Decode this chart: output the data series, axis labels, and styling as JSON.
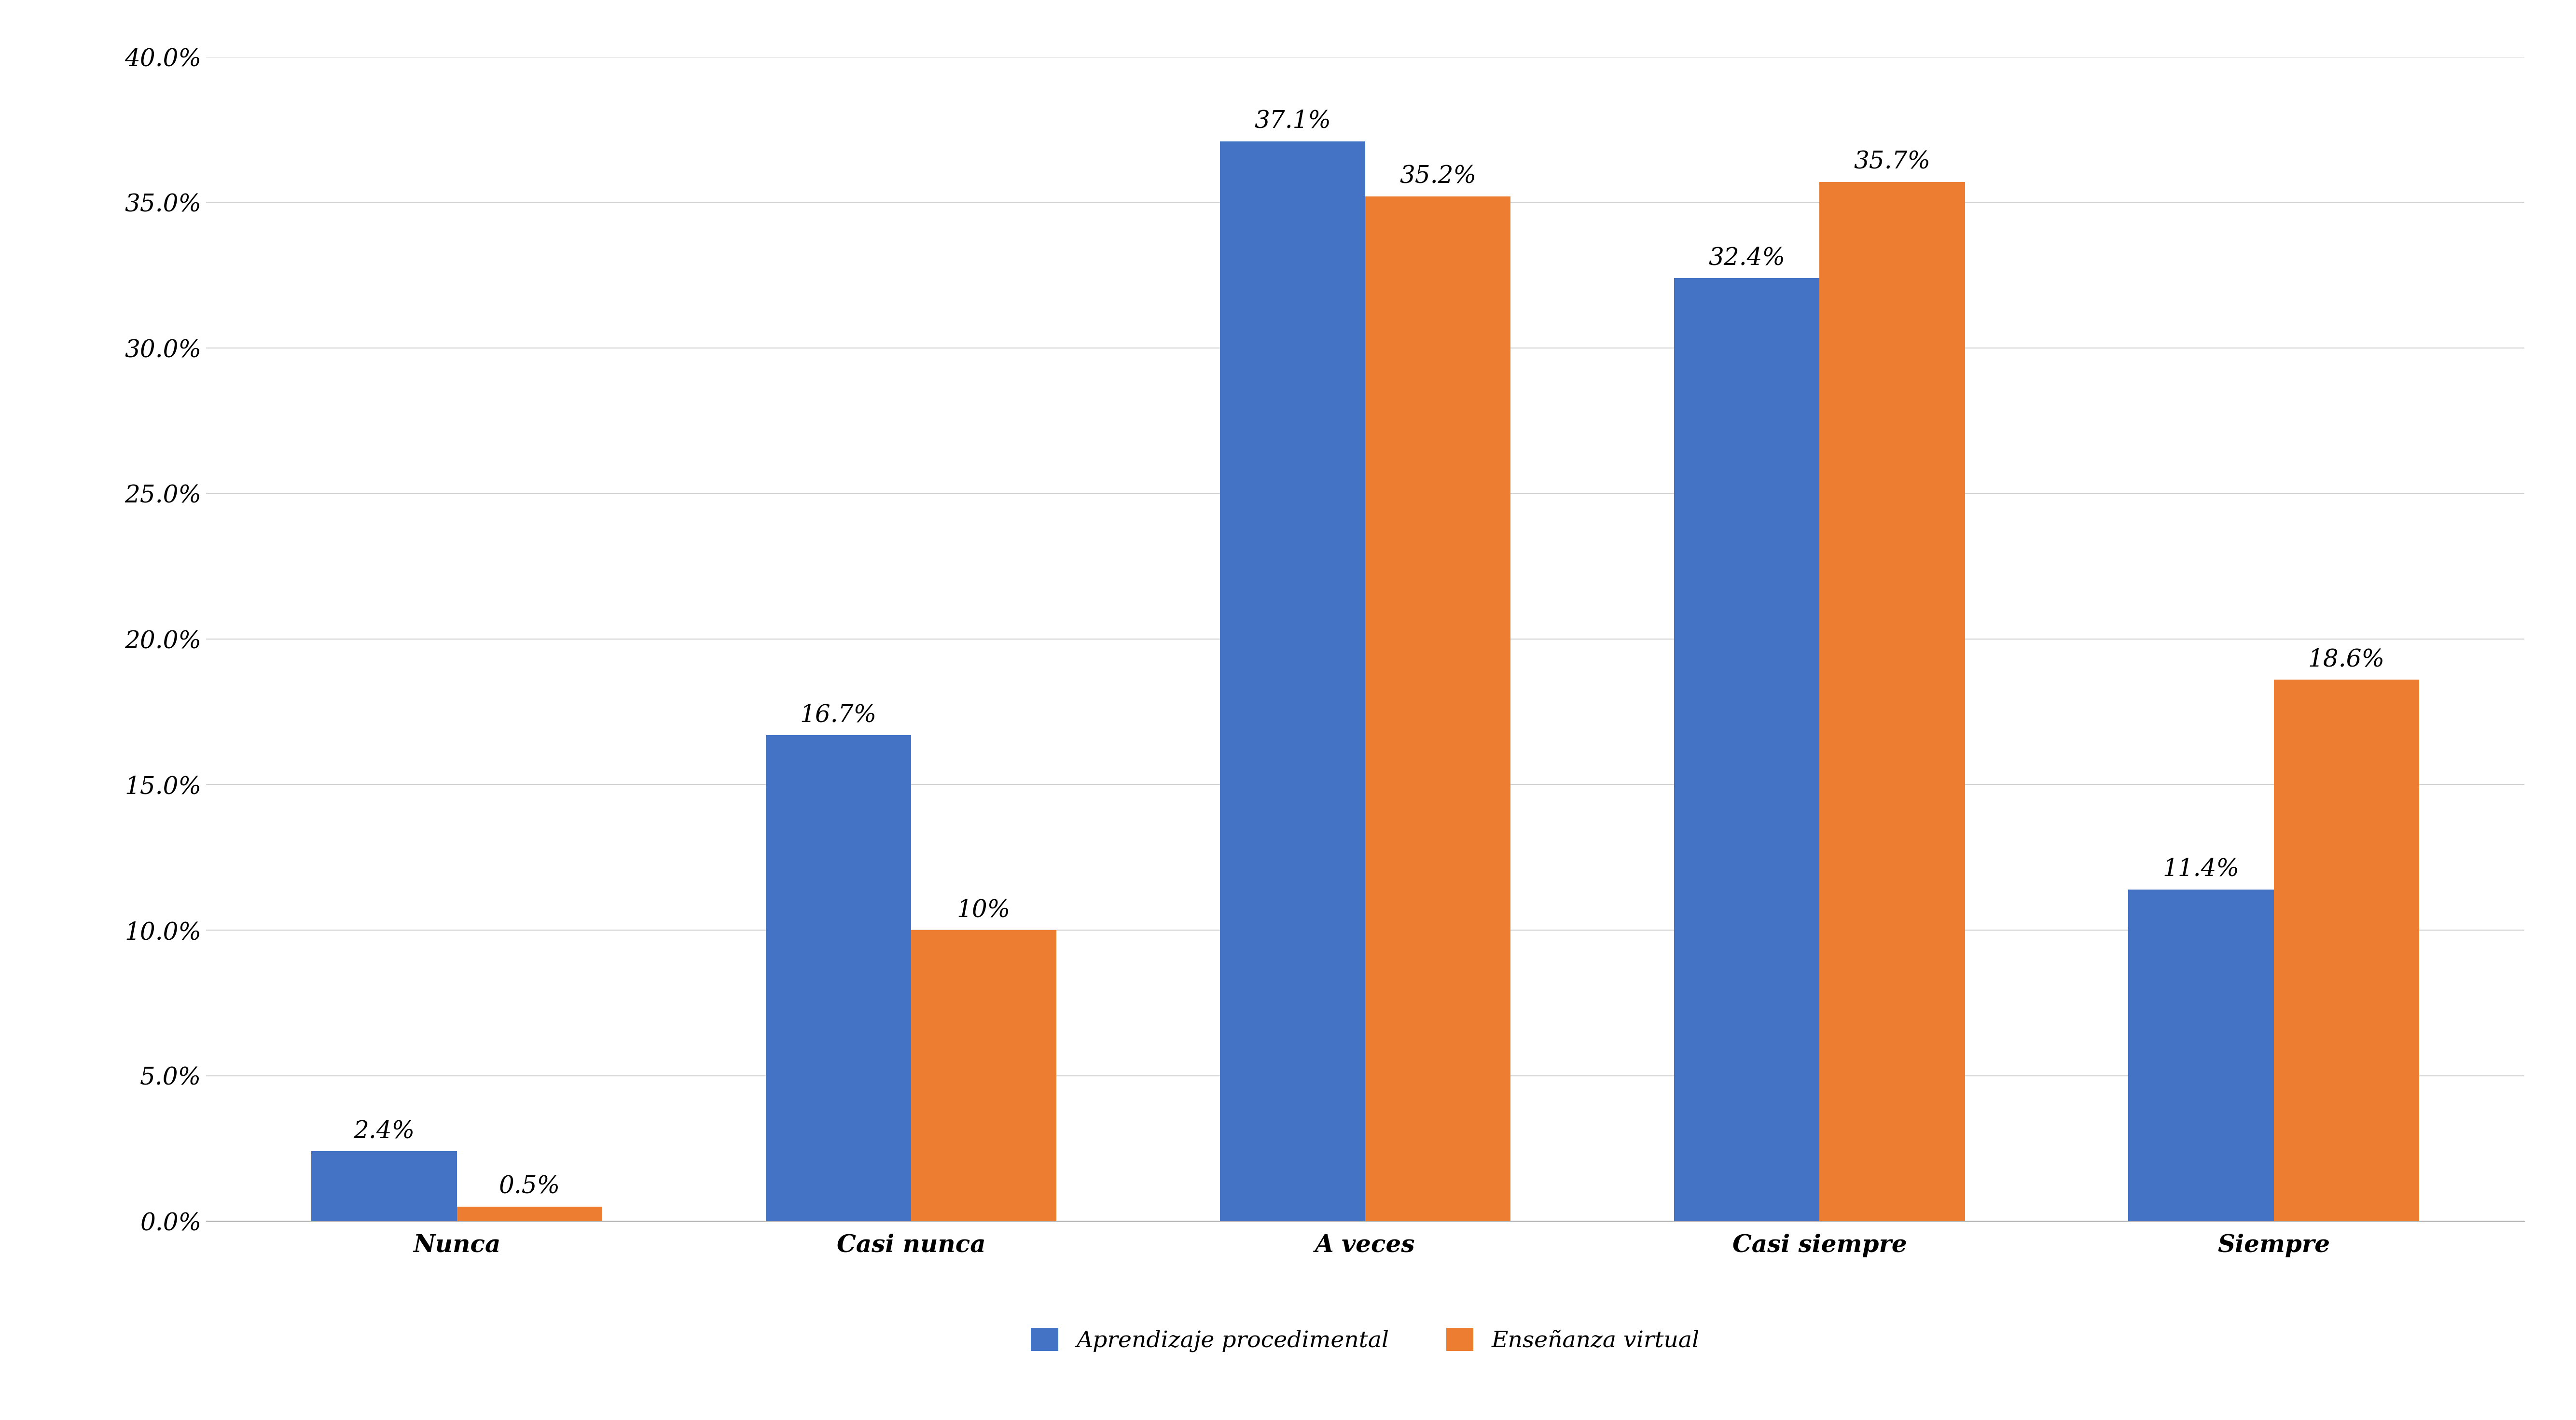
{
  "categories": [
    "Nunca",
    "Casi nunca",
    "A veces",
    "Casi siempre",
    "Siempre"
  ],
  "series": [
    {
      "name": "Aprendizaje procedimental",
      "values": [
        2.4,
        16.7,
        37.1,
        32.4,
        11.4
      ],
      "color": "#4472C4",
      "labels": [
        "2.4%",
        "16.7%",
        "37.1%",
        "32.4%",
        "11.4%"
      ]
    },
    {
      "name": "Enseñanza virtual",
      "values": [
        0.5,
        10.0,
        35.2,
        35.7,
        18.6
      ],
      "color": "#ED7D31",
      "labels": [
        "0.5%",
        "10%",
        "35.2%",
        "35.7%",
        "18.6%"
      ]
    }
  ],
  "ylim": [
    0,
    40.0
  ],
  "yticks": [
    0.0,
    5.0,
    10.0,
    15.0,
    20.0,
    25.0,
    30.0,
    35.0,
    40.0
  ],
  "ytick_labels": [
    "0.0%",
    "5.0%",
    "10.0%",
    "15.0%",
    "20.0%",
    "25.0%",
    "30.0%",
    "35.0%",
    "40.0%"
  ],
  "background_color": "#FFFFFF",
  "plot_bg_color": "#FFFFFF",
  "grid_color": "#D0D0D0",
  "bar_width": 0.32,
  "legend_ncol": 2,
  "tick_fontsize": 36,
  "annotation_fontsize": 36,
  "legend_fontsize": 34
}
